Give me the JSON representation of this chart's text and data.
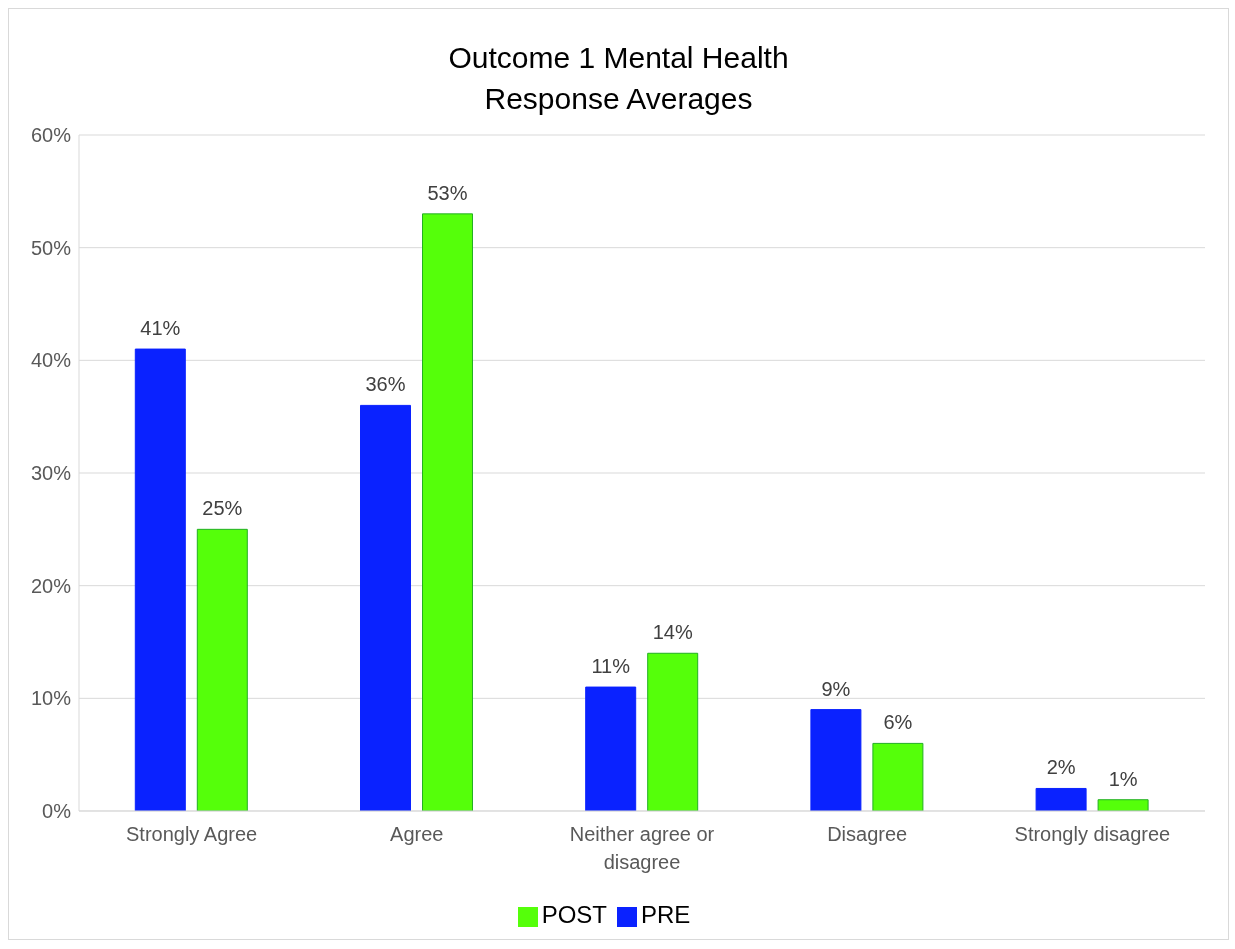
{
  "chart_data": {
    "type": "bar",
    "title": "Outcome 1 Mental Health Response Averages",
    "categories": [
      "Strongly Agree",
      "Agree",
      "Neither agree or disagree",
      "Disagree",
      "Strongly disagree"
    ],
    "series": [
      {
        "name": "PRE",
        "color": "#0a22ff",
        "values": [
          41,
          36,
          11,
          9,
          2
        ],
        "value_labels": [
          "41%",
          "36%",
          "11%",
          "9%",
          "2%"
        ]
      },
      {
        "name": "POST",
        "color": "#55ff0a",
        "values": [
          25,
          53,
          14,
          6,
          1
        ],
        "value_labels": [
          "25%",
          "53%",
          "14%",
          "6%",
          "1%"
        ]
      }
    ],
    "ylim": [
      0,
      60
    ],
    "yticks": [
      {
        "value": 0,
        "label": "0%"
      },
      {
        "value": 10,
        "label": "10%"
      },
      {
        "value": 20,
        "label": "20%"
      },
      {
        "value": 30,
        "label": "30%"
      },
      {
        "value": 40,
        "label": "40%"
      },
      {
        "value": 50,
        "label": "50%"
      },
      {
        "value": 60,
        "label": "60%"
      }
    ],
    "grid": "y",
    "legend": "bottom"
  }
}
